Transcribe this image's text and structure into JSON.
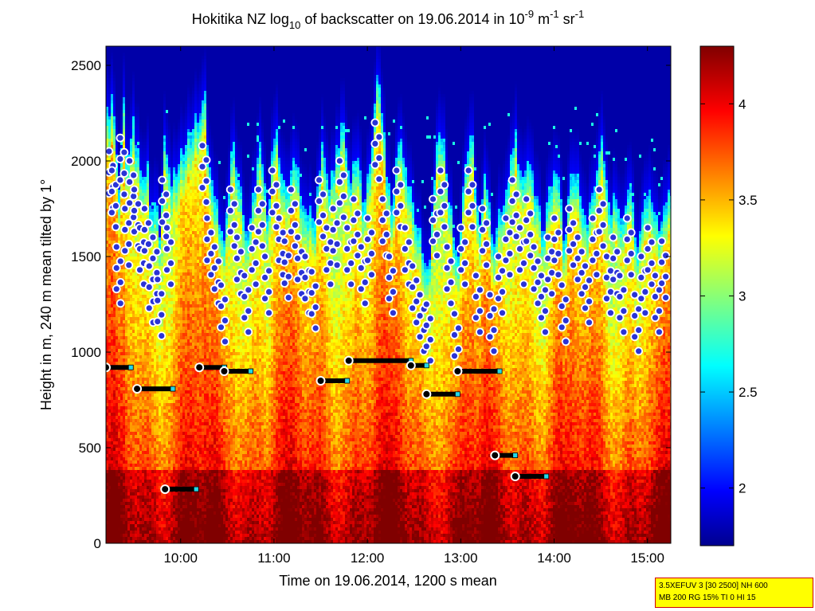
{
  "chart_data": {
    "type": "heatmap",
    "title_parts": {
      "before_sub": "Hokitika NZ log",
      "sub": "10",
      "after_sub": " of backscatter on 19.06.2014 in 10",
      "sup1": "-9",
      "mid": " m",
      "sup2": "-1",
      "mid2": " sr",
      "sup3": "-1"
    },
    "xlabel": "Time on 19.06.2014, 1200 s mean",
    "ylabel": "Height in m, 240 m mean tilted by 1°",
    "x_range_hours": [
      9.2,
      15.25
    ],
    "x_ticks": [
      "10:00",
      "11:00",
      "12:00",
      "13:00",
      "14:00",
      "15:00"
    ],
    "x_tick_hours": [
      10,
      11,
      12,
      13,
      14,
      15
    ],
    "ylim": [
      0,
      2600
    ],
    "y_ticks": [
      0,
      500,
      1000,
      1500,
      2000,
      2500
    ],
    "colorbar": {
      "range": [
        1.7,
        4.3
      ],
      "ticks": [
        "2",
        "2.5",
        "3",
        "3.5",
        "4"
      ],
      "tick_values": [
        2,
        2.5,
        3,
        3.5,
        4
      ],
      "colormap": "jet"
    },
    "series": [
      {
        "description_key": "mixing_layer_height_segments",
        "segments": [
          {
            "start": "09:12",
            "end": "09:28",
            "height": 920
          },
          {
            "start": "09:32",
            "end": "09:55",
            "height": 808
          },
          {
            "start": "09:50",
            "end": "10:10",
            "height": 283
          },
          {
            "start": "10:12",
            "end": "10:28",
            "height": 920
          },
          {
            "start": "10:28",
            "end": "10:45",
            "height": 900
          },
          {
            "start": "11:30",
            "end": "11:47",
            "height": 850
          },
          {
            "start": "11:48",
            "end": "12:28",
            "height": 955
          },
          {
            "start": "12:28",
            "end": "12:38",
            "height": 930
          },
          {
            "start": "12:38",
            "end": "12:58",
            "height": 780
          },
          {
            "start": "12:58",
            "end": "13:25",
            "height": 900
          },
          {
            "start": "13:22",
            "end": "13:35",
            "height": 460
          },
          {
            "start": "13:35",
            "end": "13:55",
            "height": 350
          }
        ]
      },
      {
        "description_key": "aerosol_layer_tops",
        "hours": [
          9.25,
          9.28,
          9.33,
          9.37,
          9.42,
          9.47,
          9.52,
          9.58,
          9.63,
          9.68,
          9.72,
          9.77,
          9.82,
          9.87,
          10.25,
          10.3,
          10.38,
          10.45,
          10.55,
          10.62,
          10.7,
          10.78,
          10.85,
          10.92,
          11.0,
          11.07,
          11.13,
          11.2,
          11.27,
          11.35,
          11.42,
          11.5,
          11.58,
          11.65,
          11.72,
          11.8,
          11.87,
          11.95,
          12.02,
          12.1,
          12.18,
          12.25,
          12.33,
          12.42,
          12.5,
          12.58,
          12.65,
          12.72,
          12.8,
          12.87,
          12.95,
          13.02,
          13.1,
          13.18,
          13.25,
          13.33,
          13.42,
          13.5,
          13.57,
          13.65,
          13.72,
          13.8,
          13.88,
          13.95,
          14.02,
          14.1,
          14.18,
          14.27,
          14.35,
          14.43,
          14.5,
          14.58,
          14.65,
          14.72,
          14.8,
          14.88,
          14.95,
          15.02,
          15.1,
          15.17
        ],
        "heights": [
          2050,
          1950,
          1550,
          2120,
          1750,
          2000,
          1850,
          1650,
          1750,
          1450,
          1600,
          1380,
          1900,
          1650,
          2080,
          1700,
          1550,
          1350,
          1850,
          1600,
          1400,
          1650,
          1850,
          1500,
          1950,
          1700,
          1580,
          1850,
          1600,
          1500,
          1420,
          1900,
          1650,
          1750,
          2000,
          1650,
          1800,
          1550,
          1700,
          2200,
          1800,
          1500,
          1950,
          1650,
          1450,
          1300,
          1250,
          1800,
          1950,
          1550,
          1200,
          1650,
          1950,
          1400,
          1750,
          1300,
          1500,
          1700,
          1900,
          1650,
          1800,
          1550,
          1400,
          1600,
          1700,
          1350,
          1750,
          1600,
          1450,
          1700,
          1850,
          1500,
          1600,
          1400,
          1700,
          1300,
          1500,
          1650,
          1400,
          1580
        ]
      }
    ]
  },
  "info_box": {
    "line1": "3.5XEFUV 3 [30 2500] NH 600",
    "line2": "MB 200 RG 15% TI 0 HI 15"
  },
  "colors": {
    "background": "#ffffff",
    "segment": "#000000",
    "dot_fill": "#2a33d6",
    "dot_stroke": "#ffffff",
    "marker": "#22d8e8"
  }
}
